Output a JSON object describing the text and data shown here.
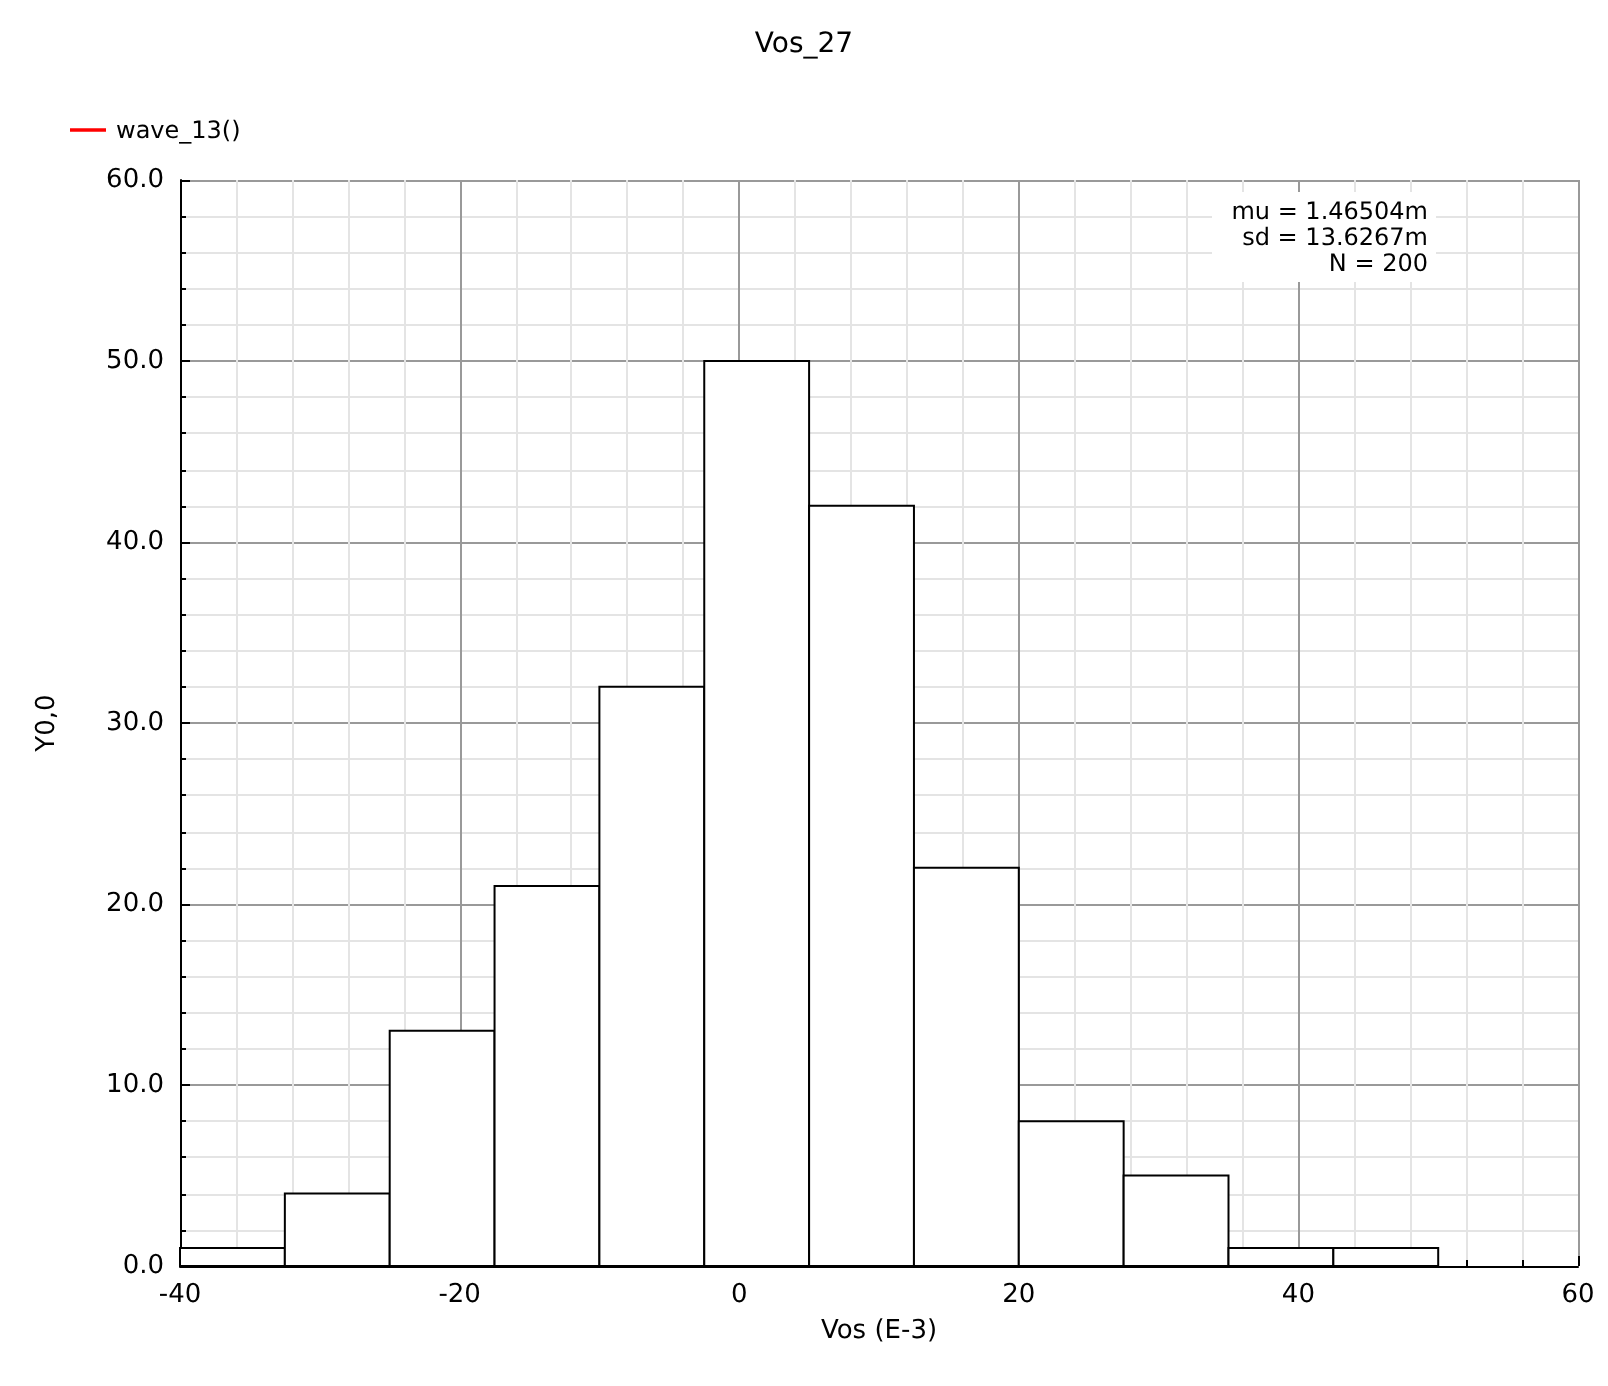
{
  "chart_data": {
    "type": "histogram",
    "title": "Vos_27",
    "xlabel": "Vos (E-3)",
    "ylabel": "Y0,0",
    "bins": [
      -40,
      -32.5,
      -25,
      -17.5,
      -10,
      -2.5,
      5,
      12.5,
      20,
      27.5,
      35,
      42.5,
      50
    ],
    "series": [
      {
        "name": "wave_13()",
        "values": [
          1,
          4,
          13,
          21,
          32,
          50,
          42,
          22,
          8,
          5,
          1,
          1
        ]
      }
    ],
    "xlim": [
      -40,
      60
    ],
    "xticks": [
      -40,
      -20,
      0,
      20,
      40,
      60
    ],
    "ylim": [
      0,
      60
    ],
    "yticks": [
      {
        "value": 0,
        "label": "0.0"
      },
      {
        "value": 10,
        "label": "10.0"
      },
      {
        "value": 20,
        "label": "20.0"
      },
      {
        "value": 30,
        "label": "30.0"
      },
      {
        "value": 40,
        "label": "40.0"
      },
      {
        "value": 50,
        "label": "50.0"
      },
      {
        "value": 60,
        "label": "60.0"
      }
    ],
    "annotations": [
      "mu = 1.46504m",
      "sd = 13.6267m",
      "N = 200"
    ],
    "grid": true,
    "legend": "top left"
  }
}
